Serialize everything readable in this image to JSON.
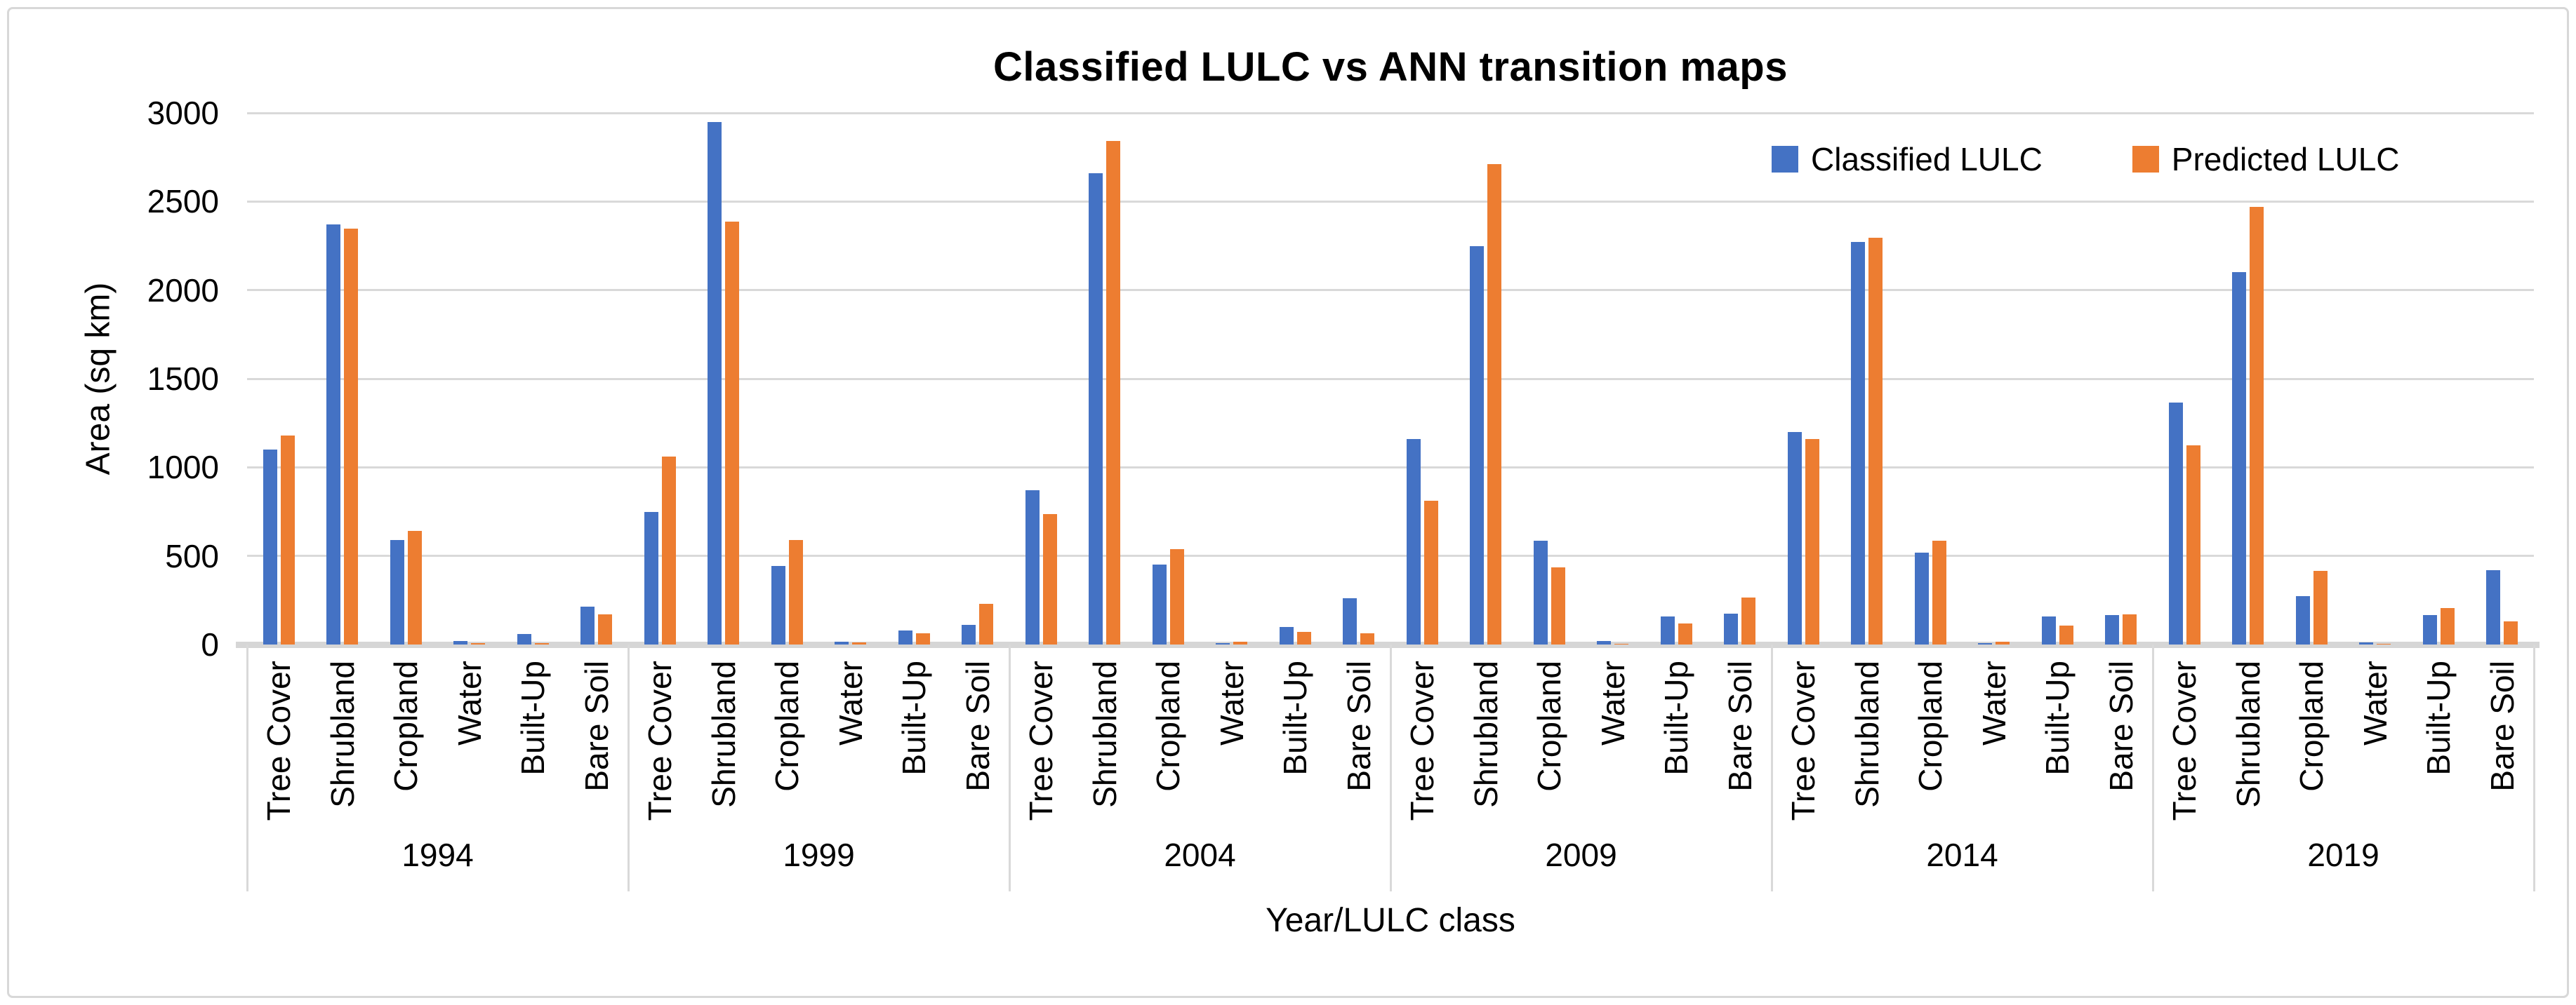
{
  "chart_data": {
    "type": "bar",
    "title": "Classified LULC vs ANN transition maps",
    "xlabel": "Year/LULC class",
    "ylabel": "Area (sq km)",
    "ylim": [
      0,
      3000
    ],
    "ytick_interval": 500,
    "yticks": [
      0,
      500,
      1000,
      1500,
      2000,
      2500,
      3000
    ],
    "grid": true,
    "legend_position": "top-right-inside",
    "categories": [
      "Tree Cover",
      "Shrubland",
      "Cropland",
      "Water",
      "Built-Up",
      "Bare Soil"
    ],
    "series_names": [
      "Classified LULC",
      "Predicted LULC"
    ],
    "colors": {
      "classified": "#4472C4",
      "predicted": "#ED7D31",
      "gridline": "#D9D9D9"
    },
    "groups": [
      {
        "year": "1994",
        "classified": [
          1100,
          2370,
          590,
          20,
          60,
          215
        ],
        "predicted": [
          1180,
          2345,
          640,
          8,
          8,
          170
        ]
      },
      {
        "year": "1999",
        "classified": [
          750,
          2950,
          445,
          15,
          80,
          110
        ],
        "predicted": [
          1060,
          2385,
          590,
          12,
          62,
          230
        ]
      },
      {
        "year": "2004",
        "classified": [
          870,
          2660,
          450,
          8,
          100,
          260
        ],
        "predicted": [
          735,
          2840,
          540,
          15,
          70,
          65
        ]
      },
      {
        "year": "2009",
        "classified": [
          1160,
          2250,
          585,
          20,
          160,
          175
        ],
        "predicted": [
          810,
          2710,
          435,
          5,
          120,
          265
        ]
      },
      {
        "year": "2014",
        "classified": [
          1200,
          2270,
          520,
          8,
          160,
          165
        ],
        "predicted": [
          1160,
          2295,
          585,
          15,
          105,
          170
        ]
      },
      {
        "year": "2019",
        "classified": [
          1365,
          2100,
          275,
          12,
          165,
          420
        ],
        "predicted": [
          1125,
          2470,
          415,
          5,
          205,
          130
        ]
      }
    ]
  }
}
